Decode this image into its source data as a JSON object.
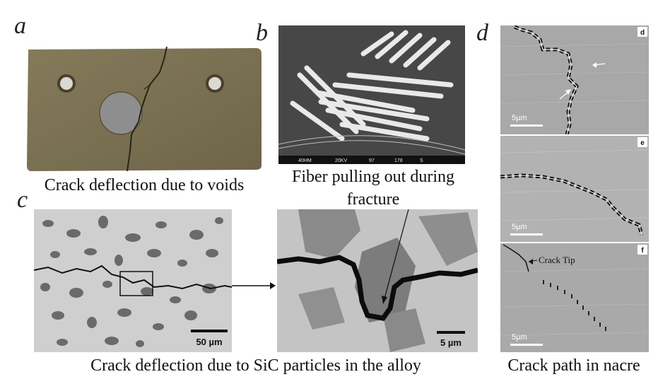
{
  "panels": {
    "a": {
      "letter": "a",
      "caption": "Crack deflection due to voids"
    },
    "b": {
      "letter": "b",
      "caption_line1": "Fiber pulling out during",
      "caption_line2": "fracture",
      "sem_info": [
        "40HM",
        "20KV",
        "97",
        "178",
        "S"
      ]
    },
    "c": {
      "letter": "c",
      "caption": "Crack deflection due to SiC particles in the alloy",
      "scale_left": "50 µm",
      "scale_right": "5 µm"
    },
    "d": {
      "letter": "d",
      "caption": "Crack path in nacre",
      "sub": [
        {
          "tag": "d",
          "scale": "5µm"
        },
        {
          "tag": "e",
          "scale": "5µm"
        },
        {
          "tag": "f",
          "scale": "5µm",
          "annotation": "Crack Tip"
        }
      ]
    }
  },
  "colors": {
    "specimen": "#7d7355",
    "sem_gray": "#9a9a9a",
    "micro_bg": "#c8c8c8"
  }
}
